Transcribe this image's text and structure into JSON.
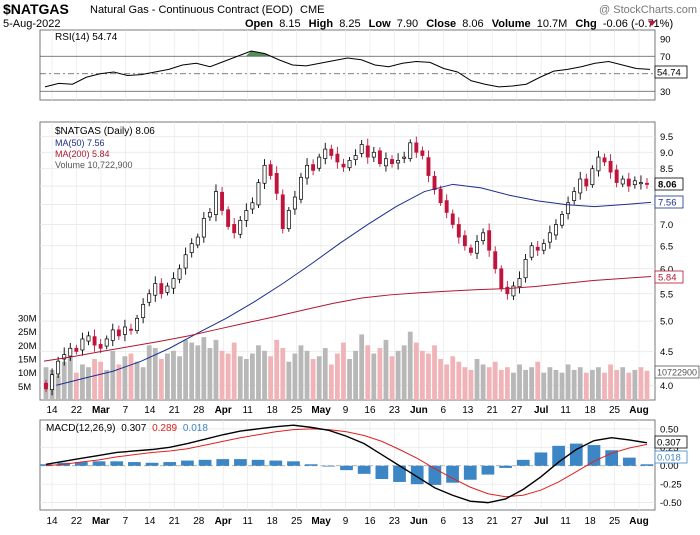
{
  "header": {
    "symbol": "$NATGAS",
    "description": "Natural Gas - Continuous Contract (EOD)",
    "exchange": "CME",
    "date": "5-Aug-2022",
    "open_label": "Open",
    "open": "8.15",
    "high_label": "High",
    "high": "8.25",
    "low_label": "Low",
    "low": "7.90",
    "close_label": "Close",
    "close": "8.06",
    "volume_label": "Volume",
    "volume": "10.7M",
    "chg_label": "Chg",
    "chg": "-0.06 (-0.71%)",
    "watermark": "@ StockCharts.com"
  },
  "colors": {
    "up_candle": "#ffffff",
    "down_candle": "#c0143c",
    "ma50": "#1c2e8c",
    "ma200": "#b01830",
    "volume_up": "#b8b8b8",
    "volume_down": "#f0b4b8",
    "macd_line": "#000000",
    "signal_line": "#e02020",
    "histogram": "#3d86c6",
    "rsi_line": "#000000",
    "rsi_overbought_fill": "#3a7a3a",
    "price_tag": "#ffffff"
  },
  "x_axis_labels": [
    "14",
    "22",
    "Mar",
    "7",
    "14",
    "21",
    "28",
    "Apr",
    "11",
    "18",
    "25",
    "May",
    "9",
    "16",
    "23",
    "Jun",
    "6",
    "13",
    "21",
    "27",
    "Jul",
    "11",
    "18",
    "25",
    "Aug"
  ],
  "chart_data": [
    {
      "type": "line",
      "title": "RSI(14) 54.74",
      "series": [
        {
          "name": "RSI(14)",
          "values": [
            35,
            39,
            38,
            46,
            50,
            52,
            48,
            49,
            52,
            55,
            60,
            62,
            58,
            64,
            70,
            76,
            73,
            66,
            60,
            59,
            62,
            65,
            68,
            66,
            60,
            58,
            62,
            64,
            63,
            56,
            52,
            42,
            38,
            35,
            36,
            38,
            46,
            53,
            55,
            58,
            62,
            64,
            60,
            56,
            55
          ]
        }
      ],
      "ylim": [
        20,
        100
      ],
      "yticks": [
        "90",
        "70",
        "50",
        "30"
      ],
      "reference_lines": [
        70,
        50,
        30
      ],
      "last_value": "54.74"
    },
    {
      "type": "candlestick",
      "title": "$NATGAS (Daily) 8.06",
      "ylabel": "",
      "log_scale": true,
      "ylim": [
        3.8,
        10.0
      ],
      "yticks": [
        "9.5",
        "9.0",
        "8.5",
        "8.0",
        "7.5",
        "7.0",
        "6.5",
        "6.0",
        "5.5",
        "5.0",
        "4.5",
        "4.0"
      ],
      "close": [
        3.95,
        4.15,
        4.35,
        4.45,
        4.55,
        4.5,
        4.7,
        4.75,
        4.6,
        4.55,
        4.7,
        4.85,
        4.75,
        4.9,
        4.85,
        5.05,
        5.3,
        5.5,
        5.7,
        5.5,
        5.65,
        5.8,
        6.0,
        6.3,
        6.55,
        6.7,
        7.15,
        7.3,
        7.85,
        7.35,
        6.95,
        6.8,
        7.1,
        7.35,
        7.55,
        8.1,
        8.6,
        8.3,
        7.8,
        6.9,
        7.35,
        7.7,
        8.25,
        8.6,
        8.45,
        8.85,
        9.1,
        8.9,
        8.7,
        8.55,
        8.75,
        8.9,
        9.25,
        8.85,
        9.0,
        8.65,
        8.8,
        8.65,
        8.75,
        8.85,
        9.3,
        9.0,
        8.9,
        8.3,
        7.9,
        7.55,
        7.3,
        7.0,
        6.7,
        6.5,
        6.35,
        6.6,
        6.8,
        6.4,
        6.0,
        5.6,
        5.5,
        5.65,
        5.8,
        6.2,
        6.5,
        6.4,
        6.55,
        6.8,
        7.0,
        7.25,
        7.55,
        7.85,
        8.2,
        8.0,
        8.5,
        8.85,
        8.7,
        8.4,
        8.1,
        8.2,
        8.0,
        8.15,
        8.1,
        8.06
      ],
      "series": [
        {
          "name": "MA(50) 7.56",
          "values": [
            4.0,
            4.1,
            4.2,
            4.35,
            4.55,
            4.8,
            5.05,
            5.35,
            5.7,
            6.1,
            6.55,
            7.0,
            7.45,
            7.85,
            8.05,
            7.95,
            7.75,
            7.6,
            7.5,
            7.45,
            7.5,
            7.56
          ]
        },
        {
          "name": "MA(200) 5.84",
          "values": [
            4.35,
            4.42,
            4.5,
            4.58,
            4.66,
            4.75,
            4.86,
            4.97,
            5.08,
            5.2,
            5.32,
            5.42,
            5.48,
            5.52,
            5.55,
            5.58,
            5.6,
            5.64,
            5.7,
            5.76,
            5.8,
            5.84
          ]
        },
        {
          "name": "Volume 10,722,900",
          "values": [
            12,
            11,
            9,
            14,
            16,
            10,
            13,
            12,
            15,
            14,
            11,
            18,
            13,
            16,
            17,
            14,
            12,
            20,
            19,
            15,
            17,
            18,
            16,
            22,
            21,
            20,
            23,
            19,
            22,
            18,
            17,
            21,
            16,
            15,
            17,
            20,
            18,
            16,
            22,
            19,
            14,
            17,
            20,
            18,
            15,
            16,
            19,
            13,
            17,
            21,
            15,
            18,
            24,
            20,
            17,
            19,
            22,
            16,
            18,
            20,
            25,
            21,
            18,
            17,
            20,
            15,
            13,
            16,
            14,
            12,
            11,
            15,
            13,
            12,
            14,
            11,
            12,
            10,
            13,
            11,
            12,
            14,
            10,
            12,
            11,
            10,
            13,
            11,
            12,
            10,
            11,
            12,
            10,
            13,
            11,
            12,
            10,
            11,
            12,
            10.7
          ]
        }
      ],
      "volume_ticks": [
        "30M",
        "25M",
        "20M",
        "15M",
        "10M",
        "5M"
      ],
      "last_close_label": "8.06",
      "ma50_label": "7.56",
      "ma200_label": "5.84",
      "volume_label": "10722900"
    },
    {
      "type": "line",
      "title": "MACD(12,26,9) 0.307, 0.289, 0.018",
      "macd_label": "MACD(12,26,9)",
      "macd_value": "0.307",
      "signal_value": "0.289",
      "hist_value": "0.018",
      "series": [
        {
          "name": "MACD",
          "values": [
            0.02,
            0.06,
            0.1,
            0.14,
            0.18,
            0.2,
            0.22,
            0.25,
            0.3,
            0.36,
            0.42,
            0.47,
            0.5,
            0.53,
            0.55,
            0.52,
            0.48,
            0.4,
            0.3,
            0.15,
            0.0,
            -0.15,
            -0.3,
            -0.4,
            -0.48,
            -0.5,
            -0.45,
            -0.32,
            -0.15,
            0.05,
            0.22,
            0.34,
            0.38,
            0.35,
            0.31
          ]
        },
        {
          "name": "Signal",
          "values": [
            0.0,
            0.02,
            0.05,
            0.08,
            0.12,
            0.15,
            0.18,
            0.2,
            0.23,
            0.28,
            0.33,
            0.38,
            0.42,
            0.46,
            0.49,
            0.5,
            0.49,
            0.46,
            0.41,
            0.33,
            0.22,
            0.1,
            -0.04,
            -0.17,
            -0.29,
            -0.38,
            -0.42,
            -0.4,
            -0.33,
            -0.22,
            -0.08,
            0.06,
            0.17,
            0.24,
            0.29
          ]
        }
      ],
      "histogram": [
        0.02,
        0.04,
        0.05,
        0.06,
        0.06,
        0.05,
        0.04,
        0.05,
        0.07,
        0.08,
        0.09,
        0.09,
        0.08,
        0.07,
        0.06,
        0.02,
        -0.01,
        -0.06,
        -0.11,
        -0.18,
        -0.22,
        -0.25,
        -0.26,
        -0.23,
        -0.19,
        -0.12,
        -0.03,
        0.08,
        0.18,
        0.27,
        0.3,
        0.28,
        0.21,
        0.11,
        0.02
      ],
      "ylim": [
        -0.6,
        0.62
      ],
      "yticks": [
        "0.50",
        "0.25",
        "0.00",
        "-0.25",
        "-0.50"
      ]
    }
  ]
}
